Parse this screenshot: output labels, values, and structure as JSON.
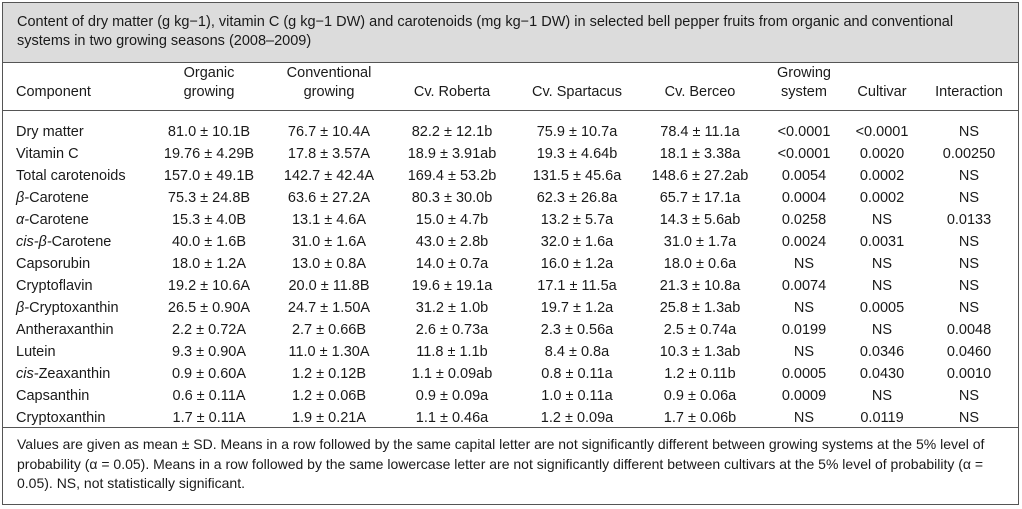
{
  "caption": "Content of dry matter (g kg−1), vitamin C (g kg−1 DW) and carotenoids (mg kg−1 DW) in selected bell pepper fruits from organic and conventional systems in two growing seasons (2008–2009)",
  "headers": {
    "component": "Component",
    "organic_1": "Organic",
    "organic_2": "growing",
    "conventional_1": "Conventional",
    "conventional_2": "growing",
    "roberta": "Cv. Roberta",
    "spartacus": "Cv. Spartacus",
    "berceo": "Cv. Berceo",
    "system_1": "Growing",
    "system_2": "system",
    "cultivar": "Cultivar",
    "interaction": "Interaction"
  },
  "rows": [
    {
      "component": "Dry matter",
      "organic": "81.0 ± 10.1B",
      "conventional": "76.7 ± 10.4A",
      "roberta": "82.2 ± 12.1b",
      "spartacus": "75.9 ± 10.7a",
      "berceo": "78.4 ± 11.1a",
      "system": "<0.0001",
      "cultivar": "<0.0001",
      "interaction": "NS"
    },
    {
      "component": "Vitamin C",
      "organic": "19.76 ± 4.29B",
      "conventional": "17.8 ± 3.57A",
      "roberta": "18.9 ± 3.91ab",
      "spartacus": "19.3 ± 4.64b",
      "berceo": "18.1 ± 3.38a",
      "system": "<0.0001",
      "cultivar": "0.0020",
      "interaction": "0.00250"
    },
    {
      "component": "Total carotenoids",
      "organic": "157.0 ± 49.1B",
      "conventional": "142.7 ± 42.4A",
      "roberta": "169.4 ± 53.2b",
      "spartacus": "131.5 ± 45.6a",
      "berceo": "148.6 ± 27.2ab",
      "system": "0.0054",
      "cultivar": "0.0002",
      "interaction": "NS"
    },
    {
      "component": "β-Carotene",
      "organic": "75.3 ± 24.8B",
      "conventional": "63.6 ± 27.2A",
      "roberta": "80.3 ± 30.0b",
      "spartacus": "62.3 ± 26.8a",
      "berceo": "65.7 ± 17.1a",
      "system": "0.0004",
      "cultivar": "0.0002",
      "interaction": "NS"
    },
    {
      "component": "α-Carotene",
      "organic": "15.3 ± 4.0B",
      "conventional": "13.1 ± 4.6A",
      "roberta": "15.0 ± 4.7b",
      "spartacus": "13.2 ± 5.7a",
      "berceo": "14.3 ± 5.6ab",
      "system": "0.0258",
      "cultivar": "NS",
      "interaction": "0.0133"
    },
    {
      "component": "cis-β-Carotene",
      "organic": "40.0 ± 1.6B",
      "conventional": "31.0 ± 1.6A",
      "roberta": "43.0 ± 2.8b",
      "spartacus": "32.0 ± 1.6a",
      "berceo": "31.0 ± 1.7a",
      "system": "0.0024",
      "cultivar": "0.0031",
      "interaction": "NS"
    },
    {
      "component": "Capsorubin",
      "organic": "18.0 ± 1.2A",
      "conventional": "13.0 ± 0.8A",
      "roberta": "14.0 ± 0.7a",
      "spartacus": "16.0 ± 1.2a",
      "berceo": "18.0 ± 0.6a",
      "system": "NS",
      "cultivar": "NS",
      "interaction": "NS"
    },
    {
      "component": "Cryptoflavin",
      "organic": "19.2 ± 10.6A",
      "conventional": "20.0 ± 11.8B",
      "roberta": "19.6 ± 19.1a",
      "spartacus": "17.1 ± 11.5a",
      "berceo": "21.3 ± 10.8a",
      "system": "0.0074",
      "cultivar": "NS",
      "interaction": "NS"
    },
    {
      "component": "β-Cryptoxanthin",
      "organic": "26.5 ± 0.90A",
      "conventional": "24.7 ± 1.50A",
      "roberta": "31.2 ± 1.0b",
      "spartacus": "19.7 ± 1.2a",
      "berceo": "25.8 ± 1.3ab",
      "system": "NS",
      "cultivar": "0.0005",
      "interaction": "NS"
    },
    {
      "component": "Antheraxanthin",
      "organic": "2.2 ± 0.72A",
      "conventional": "2.7 ± 0.66B",
      "roberta": "2.6 ± 0.73a",
      "spartacus": "2.3 ± 0.56a",
      "berceo": "2.5 ± 0.74a",
      "system": "0.0199",
      "cultivar": "NS",
      "interaction": "0.0048"
    },
    {
      "component": "Lutein",
      "organic": "9.3 ± 0.90A",
      "conventional": "11.0 ± 1.30A",
      "roberta": "11.8 ± 1.1b",
      "spartacus": "8.4 ± 0.8a",
      "berceo": "10.3 ± 1.3ab",
      "system": "NS",
      "cultivar": "0.0346",
      "interaction": "0.0460"
    },
    {
      "component": "cis-Zeaxanthin",
      "organic": "0.9 ± 0.60A",
      "conventional": "1.2 ± 0.12B",
      "roberta": "1.1 ± 0.09ab",
      "spartacus": "0.8 ± 0.11a",
      "berceo": "1.2 ± 0.11b",
      "system": "0.0005",
      "cultivar": "0.0430",
      "interaction": "0.0010"
    },
    {
      "component": "Capsanthin",
      "organic": "0.6 ± 0.11A",
      "conventional": "1.2 ± 0.06B",
      "roberta": "0.9 ± 0.09a",
      "spartacus": "1.0 ± 0.11a",
      "berceo": "0.9 ± 0.06a",
      "system": "0.0009",
      "cultivar": "NS",
      "interaction": "NS"
    },
    {
      "component": "Cryptoxanthin",
      "organic": "1.7 ± 0.11A",
      "conventional": "1.9 ± 0.21A",
      "roberta": "1.1 ± 0.46a",
      "spartacus": "1.2 ± 0.09a",
      "berceo": "1.7 ± 0.06b",
      "system": "NS",
      "cultivar": "0.0119",
      "interaction": "NS"
    }
  ],
  "footnote": "Values are given as mean ± SD. Means in a row followed by the same capital letter are not significantly different between growing systems at the 5% level of probability (α = 0.05). Means in a row followed by the same lowercase letter are not significantly different between cultivars at the 5% level of probability (α = 0.05). NS, not statistically significant."
}
